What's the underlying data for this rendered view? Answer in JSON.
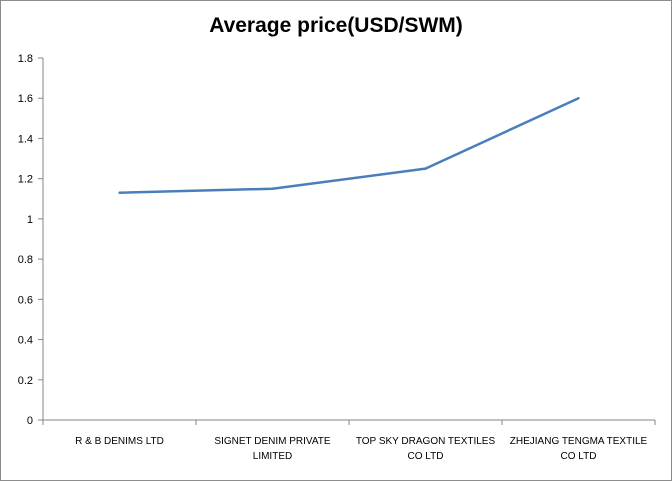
{
  "chart_data": {
    "type": "line",
    "title": "Average price(USD/SWM)",
    "categories": [
      [
        "R & B DENIMS  LTD"
      ],
      [
        "SIGNET  DENIM  PRIVATE",
        "LIMITED"
      ],
      [
        "TOP SKY DRAGON  TEXTILES",
        "CO LTD"
      ],
      [
        "ZHEJIANG  TENGMA  TEXTILE",
        "CO LTD"
      ]
    ],
    "series": [
      {
        "values": [
          1.13,
          1.15,
          1.25,
          1.6
        ],
        "color": "#4a7ebb"
      }
    ],
    "ylim": [
      0,
      1.8
    ],
    "yticks": [
      "0",
      "0.2",
      "0.4",
      "0.6",
      "0.8",
      "1",
      "1.2",
      "1.4",
      "1.6",
      "1.8"
    ],
    "grid": false,
    "legend": "none"
  }
}
